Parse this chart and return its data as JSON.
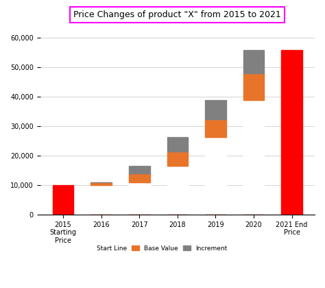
{
  "title": "Price Changes of product \"X\" from 2015 to 2021",
  "categories": [
    "2015\nStarting\nPrice",
    "2016",
    "2017",
    "2018",
    "2019",
    "2020",
    "2021 End\nPrice"
  ],
  "start_line": [
    0,
    10000,
    11000,
    16500,
    26380,
    38880,
    0
  ],
  "base_value": [
    0,
    1000,
    3000,
    5000,
    6000,
    9000,
    0
  ],
  "increment": [
    0,
    0,
    2500,
    4880,
    6500,
    7800,
    0
  ],
  "special_red": [
    10000,
    0,
    0,
    0,
    0,
    0,
    55680
  ],
  "color_start_line": "#ffffff",
  "color_base_value": "#E8742A",
  "color_increment": "#808080",
  "color_red": "#FF0000",
  "color_title_box": "#FF00FF",
  "ylim": [
    0,
    65000
  ],
  "yticks": [
    0,
    10000,
    20000,
    30000,
    40000,
    50000,
    60000
  ],
  "legend_labels": [
    "Start Line",
    "Base Value",
    "Increment"
  ],
  "background_color": "#ffffff",
  "chart_bg": "#ffffff",
  "title_fontsize": 9,
  "tick_fontsize": 7,
  "legend_fontsize": 6.5
}
